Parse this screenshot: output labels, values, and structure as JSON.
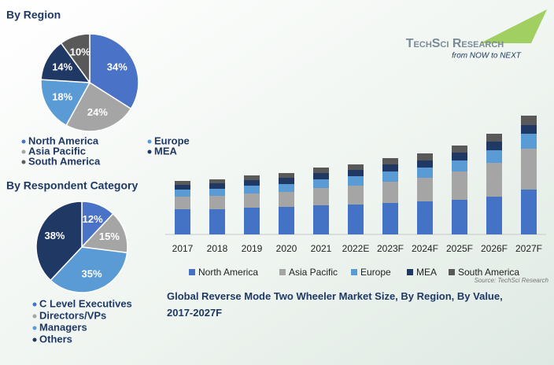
{
  "header": {
    "brand": "TechSci Research",
    "tagline": "from NOW to NEXT"
  },
  "chart_data": [
    {
      "type": "pie",
      "title": "By Region",
      "categories": [
        "North America",
        "Asia Pacific",
        "Europe",
        "MEA",
        "South America"
      ],
      "values": [
        34,
        24,
        18,
        14,
        10
      ],
      "value_labels": [
        "34%",
        "24%",
        "18%",
        "14%",
        "10%"
      ],
      "colors": [
        "#4a72c6",
        "#a5a5a5",
        "#5b9bd5",
        "#1f3864",
        "#595959"
      ]
    },
    {
      "type": "pie",
      "title": "By Respondent Category",
      "categories": [
        "C Level Executives",
        "Directors/VPs",
        "Managers",
        "Others"
      ],
      "values": [
        12,
        15,
        35,
        38
      ],
      "value_labels": [
        "12%",
        "15%",
        "35%",
        "38%"
      ],
      "colors": [
        "#4a72c6",
        "#a5a5a5",
        "#5b9bd5",
        "#1f3864"
      ]
    },
    {
      "type": "stacked-bar",
      "title": "Global Reverse Mode Two Wheeler Market Size, By Region, By Value, 2017-2027F",
      "source": "Source: TechSci Research",
      "categories": [
        "2017",
        "2018",
        "2019",
        "2020",
        "2021",
        "2022E",
        "2023F",
        "2024F",
        "2025F",
        "2026F",
        "2027F"
      ],
      "ylim": [
        0,
        160
      ],
      "series": [
        {
          "name": "North America",
          "color": "#4472c4",
          "values": [
            32,
            32,
            34,
            35,
            37,
            38,
            40,
            42,
            44,
            48,
            57
          ]
        },
        {
          "name": "Asia Pacific",
          "color": "#a5a5a5",
          "values": [
            16,
            17,
            18,
            19,
            22,
            24,
            27,
            30,
            36,
            43,
            52
          ]
        },
        {
          "name": "Europe",
          "color": "#5b9bd5",
          "values": [
            9,
            9,
            10,
            10,
            11,
            12,
            13,
            13,
            14,
            16,
            19
          ]
        },
        {
          "name": "MEA",
          "color": "#1f3864",
          "values": [
            6,
            7,
            7,
            8,
            8,
            8,
            9,
            9,
            10,
            11,
            11
          ]
        },
        {
          "name": "South America",
          "color": "#595959",
          "values": [
            5,
            5,
            6,
            6,
            7,
            7,
            8,
            9,
            9,
            10,
            12
          ]
        }
      ]
    }
  ]
}
